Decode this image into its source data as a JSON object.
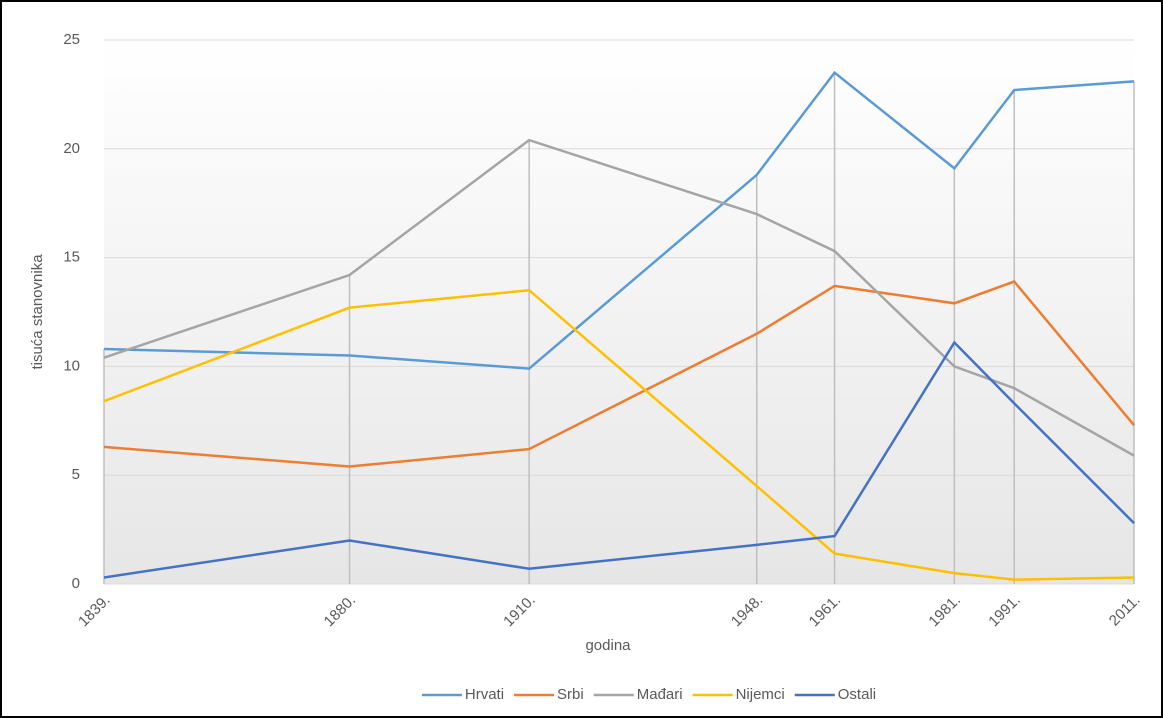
{
  "chart_data": {
    "type": "line",
    "x_label": "godina",
    "y_label": "tisuća stanovnika",
    "x": [
      1839,
      1880,
      1910,
      1948,
      1961,
      1981,
      1991,
      2011
    ],
    "xlim": [
      1839,
      2011
    ],
    "xticks": [
      {
        "value": 1839,
        "label": "1839."
      },
      {
        "value": 1880,
        "label": "1880."
      },
      {
        "value": 1910,
        "label": "1910."
      },
      {
        "value": 1948,
        "label": "1948."
      },
      {
        "value": 1961,
        "label": "1961."
      },
      {
        "value": 1981,
        "label": "1981."
      },
      {
        "value": 1991,
        "label": "1991."
      },
      {
        "value": 2011,
        "label": "2011."
      }
    ],
    "ylim": [
      0,
      25
    ],
    "yticks": [
      0,
      5,
      10,
      15,
      20,
      25
    ],
    "grid": true,
    "legend": "bottom",
    "series": [
      {
        "name": "Hrvati",
        "color": "#5b9bd5",
        "values": [
          10.8,
          10.5,
          9.9,
          18.8,
          23.5,
          19.1,
          22.7,
          23.1
        ]
      },
      {
        "name": "Srbi",
        "color": "#ed7d31",
        "values": [
          6.3,
          5.4,
          6.2,
          11.5,
          13.7,
          12.9,
          13.9,
          7.3
        ]
      },
      {
        "name": "Mađari",
        "color": "#a5a5a5",
        "values": [
          10.4,
          14.2,
          20.4,
          17.0,
          15.3,
          10.0,
          9.0,
          5.9
        ]
      },
      {
        "name": "Nijemci",
        "color": "#ffc000",
        "values": [
          8.4,
          12.7,
          13.5,
          4.5,
          1.4,
          0.5,
          0.2,
          0.3
        ]
      },
      {
        "name": "Ostali",
        "color": "#4472c4",
        "values": [
          0.3,
          2.0,
          0.7,
          1.8,
          2.2,
          11.1,
          8.3,
          2.8
        ]
      }
    ]
  }
}
